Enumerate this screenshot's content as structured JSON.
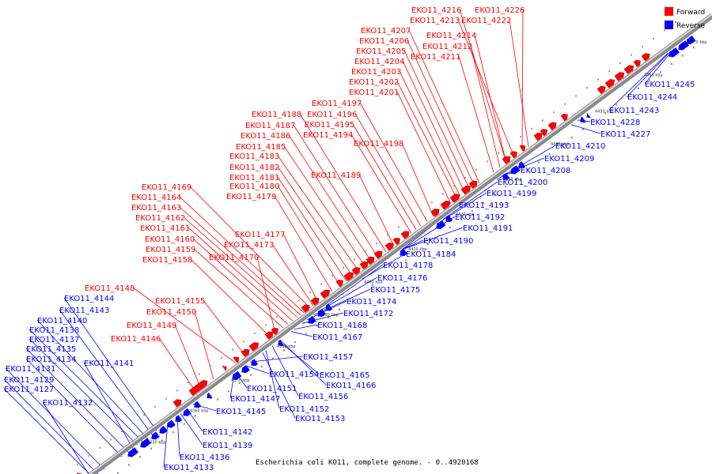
{
  "caption": "Escherichia coli KO11, complete genome. - 0..4920168",
  "legend": {
    "forward": "Forward",
    "reverse": "Reverse",
    "forward_color": "#ff0000",
    "reverse_color": "#0000ff"
  },
  "ticks": [
    "4350 kbp",
    "4360 kbp",
    "4370 kbp",
    "4380 kbp",
    "4390 kbp",
    "4400 kbp",
    "4410 kbp",
    "4420 kbp",
    "4430 kbp",
    "4440 kbp",
    "4450 kbp",
    "4460 kbp",
    "4470 kbp"
  ],
  "forward_labels": [
    "EKO11_4216",
    "EKO11_4226",
    "EKO11_4213",
    "EKO11_4222",
    "EKO11_4207",
    "EKO11_4214",
    "EKO11_4206",
    "EKO11_4212",
    "EKO11_4205",
    "EKO11_4211",
    "EKO11_4204",
    "EKO11_4203",
    "EKO11_4202",
    "EKO11_4201",
    "EKO11_4197",
    "EKO11_4188",
    "EKO11_4196",
    "EKO11_4187",
    "EKO11_4195",
    "EKO11_4186",
    "EKO11_4194",
    "EKO11_4185",
    "EKO11_4198",
    "EKO11_4183",
    "EKO11_4182",
    "EKO11_4189",
    "EKO11_4181",
    "EKO11_4180",
    "EKO11_4169",
    "EKO11_4179",
    "EKO11_4164",
    "EKO11_4163",
    "EKO11_4162",
    "EKO11_4161",
    "EKO11_4177",
    "EKO11_4160",
    "EKO11_4173",
    "EKO11_4159",
    "EKO11_4170",
    "EKO11_4158",
    "EKO11_4148",
    "EKO11_4155",
    "EKO11_4150",
    "EKO11_4149",
    "EKO11_4146"
  ],
  "reverse_labels": [
    "EKO11_4245",
    "EKO11_4244",
    "EKO11_4243",
    "EKO11_4228",
    "EKO11_4227",
    "EKO11_4210",
    "EKO11_4209",
    "EKO11_4208",
    "EKO11_4200",
    "EKO11_4199",
    "EKO11_4193",
    "EKO11_4192",
    "EKO11_4191",
    "EKO11_4190",
    "EKO11_4184",
    "EKO11_4178",
    "EKO11_4176",
    "EKO11_4175",
    "EKO11_4174",
    "EKO11_4172",
    "EKO11_4168",
    "EKO11_4167",
    "EKO11_4157",
    "EKO11_4154",
    "EKO11_4165",
    "EKO11_4151",
    "EKO11_4166",
    "EKO11_4147",
    "EKO11_4156",
    "EKO11_4145",
    "EKO11_4152",
    "EKO11_4153",
    "EKO11_4142",
    "EKO11_4139",
    "EKO11_4136",
    "EKO11_4133",
    "EKO11_4144",
    "EKO11_4143",
    "EKO11_4140",
    "EKO11_4138",
    "EKO11_4137",
    "EKO11_4141",
    "EKO11_4135",
    "EKO11_4134",
    "EKO11_4131",
    "EKO11_4129",
    "EKO11_4127",
    "EKO11_4132"
  ]
}
